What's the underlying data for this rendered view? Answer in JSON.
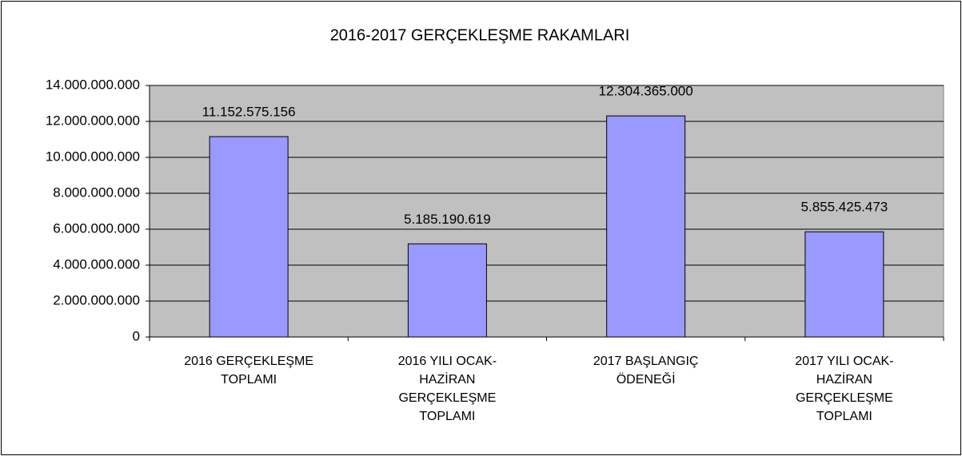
{
  "chart_data": {
    "type": "bar",
    "title": "2016-2017 GERÇEKLEŞME RAKAMLARI",
    "categories": [
      "2016 GERÇEKLEŞME TOPLAMI",
      "2016 YILI OCAK-HAZİRAN GERÇEKLEŞME TOPLAMI",
      "2017 BAŞLANGIÇ ÖDENEĞİ",
      "2017 YILI OCAK-HAZİRAN GERÇEKLEŞME TOPLAMI"
    ],
    "values": [
      11152575156,
      5185190619,
      12304365000,
      5855425473
    ],
    "value_labels": [
      "11.152.575.156",
      "5.185.190.619",
      "12.304.365.000",
      "5.855.425.473"
    ],
    "color": "#9999ff",
    "ylim": [
      0,
      14000000000
    ],
    "yticks": [
      0,
      {
        "value": 2000000000,
        "label": "2.000.000.000"
      },
      {
        "value": 4000000000,
        "label": "4.000.000.000"
      },
      {
        "value": 6000000000,
        "label": "6.000.000.000"
      },
      {
        "value": 8000000000,
        "label": "8.000.000.000"
      },
      {
        "value": 10000000000,
        "label": "10.000.000.000"
      },
      {
        "value": 12000000000,
        "label": "12.000.000.000"
      },
      {
        "value": 14000000000,
        "label": "14.000.000.000"
      }
    ],
    "grid": true
  }
}
